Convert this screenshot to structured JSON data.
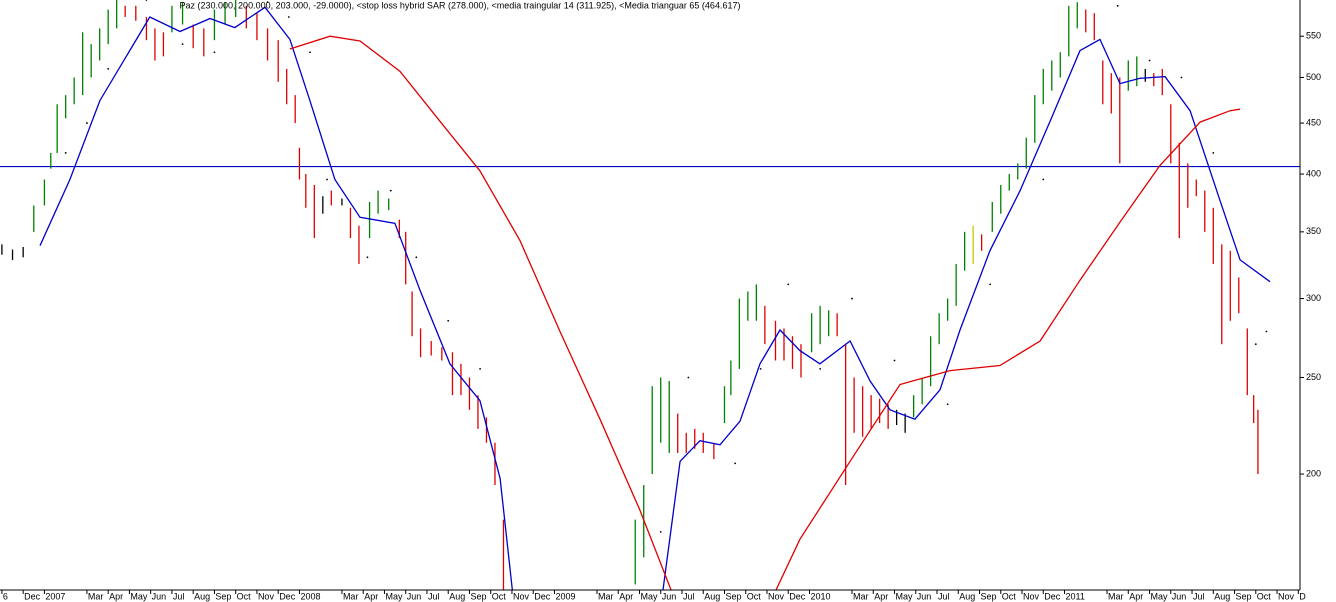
{
  "chart_data": {
    "type": "ohlc",
    "title": "Paz (230.000, 200.000, 203.000, -29.0000), <stop loss hybrid SAR (278.000), <media traingular 14 (311.925), <Media trianguar  65 (464.617)",
    "log_scale": true,
    "xlim": [
      -0.09,
      61.08
    ],
    "ylim": [
      153,
      598
    ],
    "yticks": [
      200,
      250,
      300,
      350,
      400,
      450,
      500,
      550
    ],
    "xticks": [
      {
        "value": 0,
        "label": "6"
      },
      {
        "value": 1,
        "label": "Dec"
      },
      {
        "value": 2,
        "label": "2007"
      },
      {
        "value": 4,
        "label": "Mar"
      },
      {
        "value": 5,
        "label": "Apr"
      },
      {
        "value": 6,
        "label": "May"
      },
      {
        "value": 7,
        "label": "Jun"
      },
      {
        "value": 8,
        "label": "Jul"
      },
      {
        "value": 9,
        "label": "Aug"
      },
      {
        "value": 10,
        "label": "Sep"
      },
      {
        "value": 11,
        "label": "Oct"
      },
      {
        "value": 12,
        "label": "Nov"
      },
      {
        "value": 13,
        "label": "Dec"
      },
      {
        "value": 14,
        "label": "2008"
      },
      {
        "value": 16,
        "label": "Mar"
      },
      {
        "value": 17,
        "label": "Apr"
      },
      {
        "value": 18,
        "label": "May"
      },
      {
        "value": 19,
        "label": "Jun"
      },
      {
        "value": 20,
        "label": "Jul"
      },
      {
        "value": 21,
        "label": "Aug"
      },
      {
        "value": 22,
        "label": "Sep"
      },
      {
        "value": 23,
        "label": "Oct"
      },
      {
        "value": 24,
        "label": "Nov"
      },
      {
        "value": 25,
        "label": "Dec"
      },
      {
        "value": 26,
        "label": "2009"
      },
      {
        "value": 28,
        "label": "Mar"
      },
      {
        "value": 29,
        "label": "Apr"
      },
      {
        "value": 30,
        "label": "May"
      },
      {
        "value": 31,
        "label": "Jun"
      },
      {
        "value": 32,
        "label": "Jul"
      },
      {
        "value": 33,
        "label": "Aug"
      },
      {
        "value": 34,
        "label": "Sep"
      },
      {
        "value": 35,
        "label": "Oct"
      },
      {
        "value": 36,
        "label": "Nov"
      },
      {
        "value": 37,
        "label": "Dec"
      },
      {
        "value": 38,
        "label": "2010"
      },
      {
        "value": 40,
        "label": "Mar"
      },
      {
        "value": 41,
        "label": "Apr"
      },
      {
        "value": 42,
        "label": "May"
      },
      {
        "value": 43,
        "label": "Jun"
      },
      {
        "value": 44,
        "label": "Jul"
      },
      {
        "value": 45,
        "label": "Aug"
      },
      {
        "value": 46,
        "label": "Sep"
      },
      {
        "value": 47,
        "label": "Oct"
      },
      {
        "value": 48,
        "label": "Nov"
      },
      {
        "value": 49,
        "label": "Dec"
      },
      {
        "value": 50,
        "label": "2011"
      },
      {
        "value": 52,
        "label": "Mar"
      },
      {
        "value": 53,
        "label": "Apr"
      },
      {
        "value": 54,
        "label": "May"
      },
      {
        "value": 55,
        "label": "Jun"
      },
      {
        "value": 56,
        "label": "Jul"
      },
      {
        "value": 57,
        "label": "Aug"
      },
      {
        "value": 58,
        "label": "Sep"
      },
      {
        "value": 59,
        "label": "Oct"
      },
      {
        "value": 60,
        "label": "Nov"
      },
      {
        "value": 61,
        "label": "D"
      }
    ],
    "bars": {
      "x": [
        0.0,
        0.5,
        1.0,
        1.5,
        2.0,
        2.3,
        2.6,
        3.0,
        3.4,
        3.8,
        4.2,
        4.6,
        5.0,
        5.4,
        5.8,
        6.3,
        6.8,
        7.2,
        7.6,
        8.0,
        8.5,
        9.0,
        9.5,
        10.0,
        10.5,
        11.0,
        11.5,
        12.0,
        12.5,
        13.0,
        13.4,
        13.8,
        14.0,
        14.3,
        14.7,
        15.1,
        15.5,
        16.0,
        16.4,
        16.8,
        17.3,
        17.7,
        18.2,
        18.7,
        19.0,
        19.3,
        19.7,
        20.2,
        20.7,
        21.2,
        21.6,
        22.0,
        22.4,
        22.8,
        23.2,
        23.6,
        29.8,
        30.2,
        30.6,
        31.0,
        31.4,
        31.8,
        32.2,
        32.6,
        33.0,
        33.5,
        34.0,
        34.3,
        34.7,
        35.1,
        35.5,
        35.9,
        36.4,
        36.8,
        37.2,
        37.6,
        38.1,
        38.5,
        38.9,
        39.3,
        39.7,
        40.1,
        40.5,
        40.9,
        41.3,
        41.7,
        42.1,
        42.5,
        42.9,
        43.3,
        43.7,
        44.1,
        44.5,
        44.9,
        45.3,
        45.7,
        46.1,
        46.6,
        47.0,
        47.4,
        47.8,
        48.2,
        48.6,
        49.0,
        49.4,
        49.8,
        50.2,
        50.6,
        51.0,
        51.4,
        51.8,
        52.2,
        52.6,
        53.0,
        53.4,
        53.8,
        54.2,
        54.6,
        55.0,
        55.4,
        55.8,
        56.2,
        56.6,
        57.0,
        57.4,
        57.8,
        58.2,
        58.6,
        58.9,
        59.1
      ],
      "high": [
        340,
        336,
        338,
        372,
        395,
        420,
        470,
        480,
        500,
        555,
        540,
        560,
        585,
        600,
        590,
        590,
        575,
        560,
        555,
        590,
        595,
        565,
        560,
        585,
        595,
        600,
        590,
        580,
        560,
        545,
        510,
        480,
        425,
        400,
        390,
        380,
        385,
        378,
        370,
        355,
        375,
        385,
        378,
        360,
        350,
        305,
        280,
        272,
        268,
        265,
        258,
        250,
        240,
        228,
        215,
        180,
        180,
        195,
        245,
        250,
        248,
        230,
        220,
        222,
        220,
        215,
        245,
        260,
        300,
        305,
        310,
        295,
        285,
        280,
        275,
        270,
        290,
        295,
        292,
        290,
        270,
        250,
        245,
        240,
        238,
        235,
        232,
        230,
        240,
        250,
        275,
        290,
        300,
        325,
        350,
        355,
        348,
        375,
        390,
        400,
        410,
        435,
        480,
        510,
        520,
        530,
        590,
        595,
        585,
        580,
        520,
        505,
        500,
        520,
        525,
        510,
        505,
        510,
        470,
        430,
        410,
        395,
        385,
        370,
        340,
        335,
        315,
        280,
        240,
        232
      ],
      "low": [
        332,
        328,
        330,
        350,
        372,
        405,
        420,
        455,
        470,
        480,
        500,
        520,
        540,
        560,
        575,
        570,
        545,
        520,
        525,
        555,
        565,
        535,
        525,
        545,
        565,
        575,
        560,
        545,
        520,
        495,
        470,
        450,
        395,
        370,
        345,
        365,
        372,
        372,
        345,
        325,
        345,
        365,
        368,
        345,
        310,
        275,
        262,
        263,
        260,
        240,
        240,
        232,
        222,
        215,
        195,
        150,
        155,
        165,
        200,
        215,
        210,
        210,
        210,
        212,
        210,
        207,
        225,
        240,
        255,
        285,
        285,
        270,
        260,
        260,
        255,
        250,
        265,
        270,
        275,
        275,
        195,
        220,
        218,
        222,
        225,
        222,
        224,
        220,
        228,
        235,
        245,
        270,
        285,
        295,
        320,
        325,
        335,
        350,
        365,
        385,
        395,
        405,
        430,
        470,
        485,
        500,
        525,
        560,
        555,
        545,
        470,
        460,
        410,
        485,
        490,
        495,
        490,
        480,
        410,
        345,
        370,
        380,
        350,
        325,
        270,
        285,
        290,
        240,
        225,
        200
      ],
      "colors": [
        "#000000",
        "#000000",
        "#000000",
        "#008000",
        "#008000",
        "#008000",
        "#008000",
        "#008000",
        "#008000",
        "#008000",
        "#008000",
        "#008000",
        "#008000",
        "#008000",
        "#e00000",
        "#e00000",
        "#e00000",
        "#e00000",
        "#e00000",
        "#008000",
        "#008000",
        "#e00000",
        "#e00000",
        "#008000",
        "#008000",
        "#008000",
        "#e00000",
        "#e00000",
        "#e00000",
        "#e00000",
        "#e00000",
        "#e00000",
        "#e00000",
        "#e00000",
        "#e00000",
        "#000000",
        "#e00000",
        "#000000",
        "#e00000",
        "#e00000",
        "#008000",
        "#008000",
        "#008000",
        "#e00000",
        "#e00000",
        "#e00000",
        "#e00000",
        "#e00000",
        "#e00000",
        "#e00000",
        "#e00000",
        "#e00000",
        "#e00000",
        "#e00000",
        "#e00000",
        "#e00000",
        "#008000",
        "#008000",
        "#008000",
        "#008000",
        "#008000",
        "#e00000",
        "#e00000",
        "#e00000",
        "#e00000",
        "#e00000",
        "#008000",
        "#008000",
        "#008000",
        "#008000",
        "#008000",
        "#e00000",
        "#e00000",
        "#e00000",
        "#e00000",
        "#e00000",
        "#008000",
        "#008000",
        "#008000",
        "#e00000",
        "#e00000",
        "#e00000",
        "#e00000",
        "#e00000",
        "#e00000",
        "#e00000",
        "#000000",
        "#000000",
        "#008000",
        "#008000",
        "#008000",
        "#008000",
        "#008000",
        "#008000",
        "#008000",
        "#c8c800",
        "#e00000",
        "#008000",
        "#008000",
        "#008000",
        "#008000",
        "#008000",
        "#008000",
        "#008000",
        "#008000",
        "#008000",
        "#008000",
        "#008000",
        "#e00000",
        "#e00000",
        "#e00000",
        "#e00000",
        "#e00000",
        "#008000",
        "#008000",
        "#000000",
        "#e00000",
        "#e00000",
        "#e00000",
        "#e00000",
        "#e00000",
        "#e00000",
        "#e00000",
        "#e00000",
        "#e00000",
        "#e00000",
        "#e00000",
        "#e00000",
        "#e00000",
        "#e00000"
      ]
    },
    "lines": [
      {
        "color": "#0000cc",
        "x": [
          1.79,
          3.2,
          4.61,
          6.96,
          8.38,
          9.79,
          10.96,
          12.38,
          13.55,
          14.49,
          15.67,
          16.85,
          18.49,
          19.67,
          21.08,
          22.49,
          23.44,
          24.14,
          null,
          30.96,
          31.91,
          32.85,
          33.79,
          34.73,
          35.67,
          36.61,
          37.55,
          38.49,
          39.91,
          40.85,
          41.79,
          42.96,
          44.14,
          45.08,
          46.49,
          47.91,
          49.32,
          50.73,
          51.67,
          52.61,
          53.55,
          54.73,
          55.91,
          57.32,
          58.26,
          59.67
        ],
        "values": [
          339,
          395,
          474,
          575,
          556,
          573,
          561,
          588,
          546,
          474,
          395,
          362,
          357,
          306,
          258,
          237,
          198,
          145,
          null,
          145,
          206,
          216,
          214,
          226,
          258,
          279,
          266,
          258,
          272,
          248,
          232,
          227,
          243,
          279,
          335,
          385,
          452,
          532,
          546,
          493,
          499,
          501,
          463,
          376,
          328,
          311.925
        ]
      },
      {
        "color": "#e00000",
        "x": [
          13.55,
          15.44,
          16.85,
          18.73,
          20.61,
          22.49,
          24.38,
          26.26,
          28.14,
          30.02,
          31.91,
          null,
          35.91,
          37.55,
          39.91,
          42.26,
          44.61,
          46.96,
          48.85,
          50.73,
          52.61,
          54.49,
          56.38,
          57.79,
          58.26
        ],
        "values": [
          534,
          550,
          544,
          507,
          452,
          403,
          343,
          278,
          227,
          184,
          145,
          null,
          145,
          172,
          206,
          246,
          254,
          257,
          272,
          313,
          358,
          408,
          451,
          463,
          464.617
        ]
      }
    ],
    "sar": {
      "color": "#000000",
      "x": [
        3.0,
        4.0,
        5.0,
        5.8,
        6.8,
        8.5,
        10.0,
        12.5,
        13.5,
        14.5,
        15.3,
        17.2,
        18.3,
        19.5,
        21.0,
        22.5,
        31.0,
        32.3,
        34.5,
        35.7,
        37.0,
        38.5,
        40.0,
        42.0,
        44.5,
        46.5,
        49.0,
        51.0,
        52.5,
        54.0,
        55.5,
        57.0,
        59.0,
        59.5
      ],
      "values": [
        420,
        450,
        510,
        600,
        598,
        540,
        530,
        595,
        575,
        530,
        395,
        330,
        385,
        330,
        285,
        255,
        175,
        250,
        205,
        255,
        310,
        255,
        300,
        260,
        235,
        310,
        395,
        600,
        590,
        520,
        500,
        420,
        270,
        278
      ]
    },
    "reference_line": {
      "value": 407,
      "color": "#0000cc"
    }
  }
}
